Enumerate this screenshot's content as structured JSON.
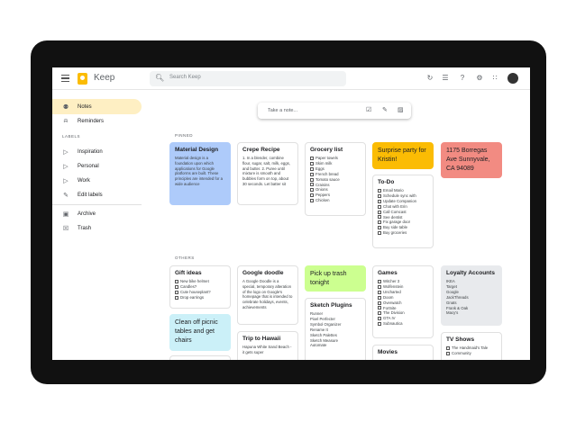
{
  "header": {
    "app_title": "Keep",
    "search_placeholder": "Search Keep",
    "icons": [
      "refresh-icon",
      "list-view-icon",
      "help-icon",
      "settings-icon",
      "apps-icon",
      "account-avatar"
    ]
  },
  "sidebar": {
    "items": [
      {
        "label": "Notes",
        "icon": "lightbulb-icon",
        "active": true
      },
      {
        "label": "Reminders",
        "icon": "bell-icon"
      }
    ],
    "labels_heading": "LABELS",
    "labels": [
      {
        "label": "Inspiration",
        "icon": "label-icon"
      },
      {
        "label": "Personal",
        "icon": "label-icon"
      },
      {
        "label": "Work",
        "icon": "label-icon"
      },
      {
        "label": "Edit labels",
        "icon": "pencil-icon"
      }
    ],
    "bottom": [
      {
        "label": "Archive",
        "icon": "archive-icon"
      },
      {
        "label": "Trash",
        "icon": "trash-icon"
      }
    ]
  },
  "take_note": {
    "placeholder": "Take a note..."
  },
  "sections": {
    "pinned": "PINNED",
    "others": "OTHERS"
  },
  "colors": {
    "blue": "#aecbfa",
    "yellow": "#fbbc04",
    "red": "#f28b82",
    "green": "#ccff90",
    "teal": "#cbf0f8",
    "gray": "#e8eaed"
  },
  "notes": [
    {
      "title": "Material Design",
      "color": "#aecbfa",
      "text": "Material design is a foundation upon which applications for Google platforms are built. These principles are intended for a wide audience"
    },
    {
      "title": "Crepe Recipe",
      "text": "1. In a blender, combine flour, sugar, salt, milk, eggs, and butter. 2. Puree until mixture is smooth and bubbles form on top, about 30 seconds. Let batter sit"
    },
    {
      "title": "Grocery list",
      "checklist": [
        "Paper towels",
        "Skim milk",
        "Eggs",
        "French bread",
        "Tomato sauce",
        "Craisins",
        "Onions",
        "Peppers",
        "Chicken"
      ]
    },
    {
      "big": "Surprise party for Kristin!",
      "color": "#fbbc04"
    },
    {
      "big": "1175 Borregas Ave Sunnyvale, CA 94089",
      "color": "#f28b82"
    },
    {
      "title": "To-Do",
      "checklist": [
        "Email Mario",
        "Schedule sync with",
        "Update Companion",
        "Chat with Erin",
        "Call Comcast",
        "See dentist",
        "Fix garage door",
        "Buy side table",
        "Buy groceries"
      ]
    },
    {
      "title": "Gift ideas",
      "checklist": [
        "New bike helmet",
        "Candles?",
        "Cute houseplant?",
        "Drop earrings"
      ]
    },
    {
      "big": "Clean off picnic tables and get chairs",
      "color": "#cbf0f8"
    },
    {
      "title": "Google doodle",
      "text": "A Google Doodle is a special, temporary alteration of the logo on Google's homepage that is intended to celebrate holidays, events, achievements"
    },
    {
      "title": "Trip to Hawaii",
      "text": "Hapuna White Sand Beach - it gets super"
    },
    {
      "big": "Pick up trash tonight",
      "color": "#ccff90"
    },
    {
      "title": "Sketch Plugins",
      "lines": [
        "Runner",
        "Pixel Perfecter",
        "Symbol Organizer",
        "Rename It",
        "Sketch Palettes",
        "Sketch Measure",
        "Automate"
      ]
    },
    {
      "title": "Games",
      "checklist": [
        "Witcher 3",
        "Wolfenstein",
        "Uncharted",
        "Doom",
        "Overwatch",
        "Fortnite",
        "The Division",
        "GTA IV",
        "Subnautica"
      ]
    },
    {
      "title": "Movies",
      "checklist": []
    },
    {
      "title": "Loyalty Accounts",
      "color": "#e8eaed",
      "lines": [
        "IKEA",
        "Target",
        "Google",
        "JackThreads",
        "Gnats",
        "Frank & Oak",
        "Macy's"
      ]
    },
    {
      "title": "TV Shows",
      "checklist": [
        "The Handmaid's Tale",
        "Community"
      ]
    },
    {
      "title": "",
      "text": ""
    }
  ]
}
